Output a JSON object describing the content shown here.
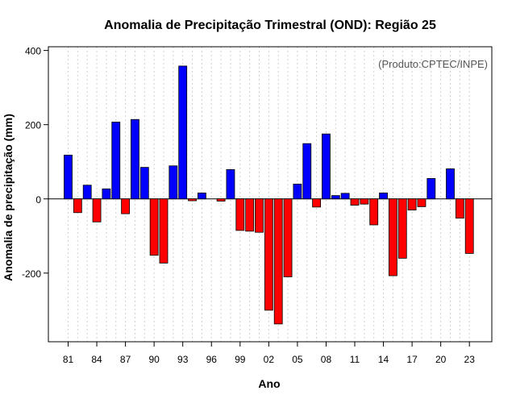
{
  "chart_data": {
    "type": "bar",
    "title": "Anomalia de Precipitação Trimestral (OND): Região 25",
    "credit": "(Produto:CPTEC/INPE)",
    "xlabel": "Ano",
    "ylabel": "Anomalia de precipitação (mm)",
    "ylim": [
      -385,
      410
    ],
    "yticks": [
      -200,
      0,
      200,
      400
    ],
    "yticks_labels": [
      "-200",
      "0",
      "200",
      "400"
    ],
    "grid": "vertical dotted",
    "positive_color": "#0000ff",
    "negative_color": "#ff0000",
    "categories": [
      "81",
      "82",
      "83",
      "84",
      "85",
      "86",
      "87",
      "88",
      "89",
      "90",
      "91",
      "92",
      "93",
      "94",
      "95",
      "96",
      "97",
      "98",
      "99",
      "00",
      "01",
      "02",
      "03",
      "04",
      "05",
      "06",
      "07",
      "08",
      "09",
      "10",
      "11",
      "12",
      "13",
      "14",
      "15",
      "16",
      "17",
      "18",
      "19",
      "20",
      "21",
      "22",
      "23"
    ],
    "values": [
      118,
      -37,
      37,
      -62,
      27,
      207,
      -40,
      214,
      85,
      -152,
      -173,
      89,
      358,
      -5,
      16,
      0,
      -6,
      79,
      -85,
      -87,
      -90,
      -300,
      -337,
      -210,
      40,
      149,
      -22,
      175,
      9,
      15,
      -17,
      -14,
      -70,
      16,
      -207,
      -160,
      -30,
      -21,
      55,
      0,
      81,
      -52,
      -147
    ],
    "xtick_labels": [
      "81",
      "84",
      "87",
      "90",
      "93",
      "96",
      "99",
      "02",
      "05",
      "08",
      "11",
      "14",
      "17",
      "20",
      "23"
    ]
  }
}
